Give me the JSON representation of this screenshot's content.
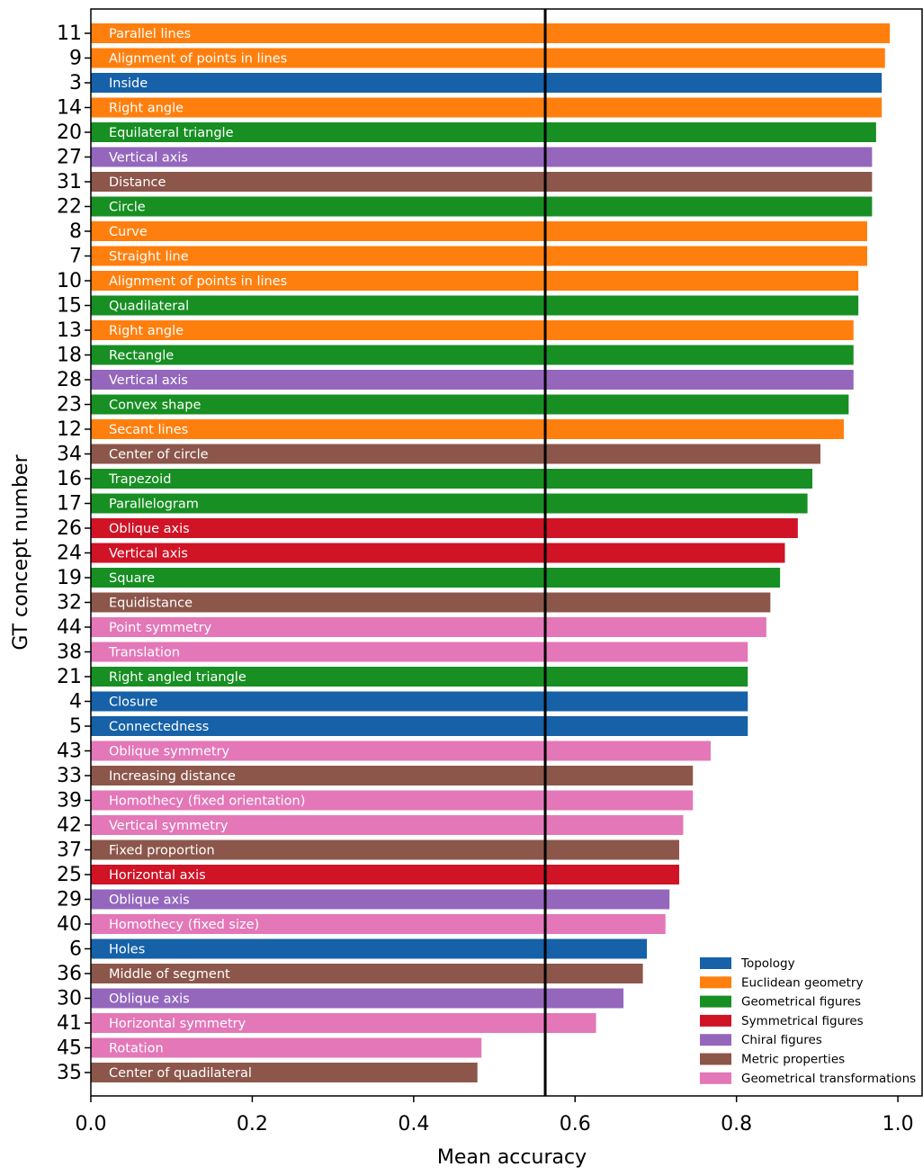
{
  "chart_data": {
    "type": "barh",
    "xlabel": "Mean accuracy",
    "ylabel": "GT concept number",
    "categories": [
      "11",
      "9",
      "3",
      "14",
      "20",
      "27",
      "31",
      "22",
      "8",
      "7",
      "10",
      "15",
      "13",
      "18",
      "28",
      "23",
      "12",
      "34",
      "16",
      "17",
      "26",
      "24",
      "19",
      "32",
      "44",
      "38",
      "21",
      "4",
      "5",
      "43",
      "33",
      "39",
      "42",
      "37",
      "25",
      "29",
      "40",
      "6",
      "36",
      "30",
      "41",
      "45",
      "35"
    ],
    "values": [
      0.99,
      0.984,
      0.98,
      0.98,
      0.973,
      0.968,
      0.968,
      0.968,
      0.962,
      0.962,
      0.951,
      0.951,
      0.945,
      0.945,
      0.945,
      0.939,
      0.933,
      0.904,
      0.894,
      0.888,
      0.876,
      0.86,
      0.854,
      0.842,
      0.837,
      0.814,
      0.814,
      0.814,
      0.814,
      0.768,
      0.746,
      0.746,
      0.734,
      0.729,
      0.729,
      0.717,
      0.712,
      0.689,
      0.684,
      0.66,
      0.626,
      0.484,
      0.479
    ],
    "bar_labels": [
      "Parallel lines",
      "Alignment of points in lines",
      "Inside",
      "Right angle",
      "Equilateral triangle",
      "Vertical axis",
      "Distance",
      "Circle",
      "Curve",
      "Straight line",
      "Alignment of points in lines",
      "Quadilateral",
      "Right angle",
      "Rectangle",
      "Vertical axis",
      "Convex shape",
      "Secant lines",
      "Center of circle",
      "Trapezoid",
      "Parallelogram",
      "Oblique axis",
      "Vertical axis",
      "Square",
      "Equidistance",
      "Point symmetry",
      "Translation",
      "Right angled triangle",
      "Closure",
      "Connectedness",
      "Oblique symmetry",
      "Increasing distance",
      "Homothecy (fixed orientation)",
      "Vertical symmetry",
      "Fixed proportion",
      "Horizontal axis",
      "Oblique axis",
      "Homothecy (fixed size)",
      "Holes",
      "Middle of segment",
      "Oblique axis",
      "Horizontal symmetry",
      "Rotation",
      "Center of quadilateral"
    ],
    "bar_groups": [
      1,
      1,
      0,
      1,
      2,
      4,
      5,
      2,
      1,
      1,
      1,
      2,
      1,
      2,
      4,
      2,
      1,
      5,
      2,
      2,
      3,
      3,
      2,
      5,
      6,
      6,
      2,
      0,
      0,
      6,
      5,
      6,
      6,
      5,
      3,
      4,
      6,
      0,
      5,
      4,
      6,
      6,
      5
    ],
    "groups": [
      {
        "name": "Topology",
        "color": "#1661a8"
      },
      {
        "name": "Euclidean geometry",
        "color": "#ff7f0e"
      },
      {
        "name": "Geometrical figures",
        "color": "#178f22"
      },
      {
        "name": "Symmetrical figures",
        "color": "#d01325"
      },
      {
        "name": "Chiral figures",
        "color": "#9467bd"
      },
      {
        "name": "Metric properties",
        "color": "#8c564b"
      },
      {
        "name": "Geometrical transformations",
        "color": "#e377b8"
      }
    ],
    "reference_line": 0.563,
    "xlim": [
      0,
      1.03
    ],
    "xticks": [
      {
        "value": 0,
        "label": "0.0"
      },
      0.2,
      0.4,
      0.6,
      0.8,
      {
        "value": 1,
        "label": "1.0"
      }
    ],
    "legend": "lower right"
  }
}
